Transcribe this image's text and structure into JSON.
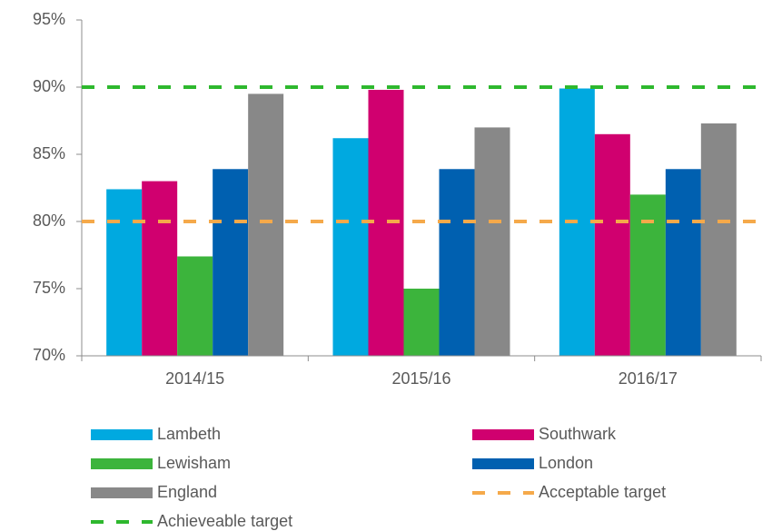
{
  "chart_data": {
    "type": "bar",
    "categories": [
      "2014/15",
      "2015/16",
      "2016/17"
    ],
    "series": [
      {
        "name": "Lambeth",
        "color": "#00a9e0",
        "values": [
          82.4,
          86.2,
          89.9
        ]
      },
      {
        "name": "Southwark",
        "color": "#d0006f",
        "values": [
          83.0,
          89.8,
          86.5
        ]
      },
      {
        "name": "Lewisham",
        "color": "#3cb43c",
        "values": [
          77.4,
          75.0,
          82.0
        ]
      },
      {
        "name": "London",
        "color": "#0060b0",
        "values": [
          83.9,
          83.9,
          83.9
        ]
      },
      {
        "name": "England",
        "color": "#888888",
        "values": [
          89.5,
          87.0,
          87.3
        ]
      }
    ],
    "lines": [
      {
        "name": "Acceptable target",
        "color": "#f5a94a",
        "value": 80
      },
      {
        "name": "Achieveable target",
        "color": "#2eb82e",
        "value": 90
      }
    ],
    "ylim": [
      70,
      95
    ],
    "yticks": [
      {
        "value": 70,
        "label": "70%"
      },
      {
        "value": 75,
        "label": "75%"
      },
      {
        "value": 80,
        "label": "80%"
      },
      {
        "value": 85,
        "label": "85%"
      },
      {
        "value": 90,
        "label": "90%"
      },
      {
        "value": 95,
        "label": "95%"
      }
    ],
    "legend": "bottom"
  }
}
